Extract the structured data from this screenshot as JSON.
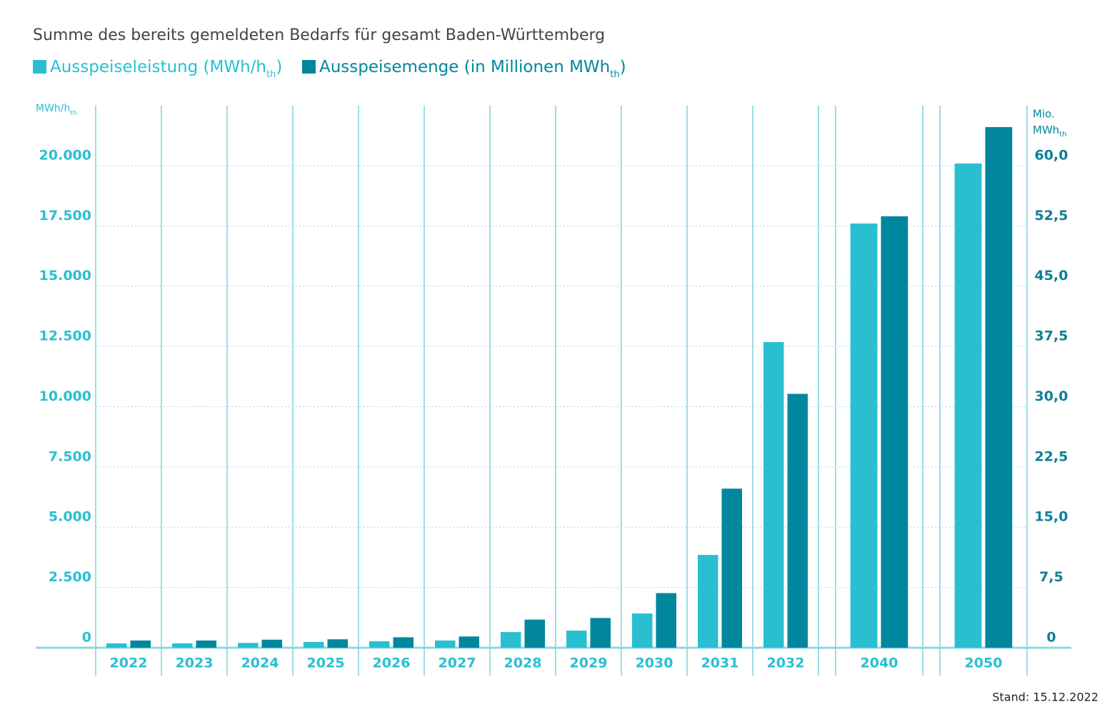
{
  "chart_data": {
    "type": "bar",
    "title": "Summe des bereits gemeldeten Bedarfs für gesamt Baden-Württemberg",
    "categories": [
      "2022",
      "2023",
      "2024",
      "2025",
      "2026",
      "2027",
      "2028",
      "2029",
      "2030",
      "2031",
      "2032",
      "2040",
      "2050"
    ],
    "series": [
      {
        "name": [
          "Ausspeiseleistung (MWh/h",
          "th",
          ")"
        ],
        "color": "#29bfd1",
        "axis": "y",
        "values": [
          180,
          180,
          200,
          240,
          270,
          300,
          650,
          710,
          1420,
          3850,
          12680,
          17600,
          20090
        ]
      },
      {
        "name": [
          "Ausspeisemenge (in Millionen MWh",
          "th",
          ")"
        ],
        "color": "#00879d",
        "axis": "y2",
        "values": [
          0.9,
          0.9,
          1.0,
          1.05,
          1.3,
          1.4,
          3.5,
          3.7,
          6.8,
          19.8,
          31.6,
          53.7,
          64.8
        ]
      }
    ],
    "y_label": [
      "MWh/h",
      "th"
    ],
    "y2_label": [
      "Mio.",
      "MWh",
      "th"
    ],
    "ylim": [
      0,
      22500
    ],
    "yticks": [
      0,
      {
        "value": 2500,
        "label": "2.500"
      },
      {
        "value": 5000,
        "label": "5.000"
      },
      {
        "value": 7500,
        "label": "7.500"
      },
      {
        "value": 10000,
        "label": "10.000"
      },
      {
        "value": 12500,
        "label": "12.500"
      },
      {
        "value": 15000,
        "label": "15.000"
      },
      {
        "value": 17500,
        "label": "17.500"
      },
      {
        "value": 20000,
        "label": "20.000"
      }
    ],
    "y2lim": [
      0,
      67.5
    ],
    "y2ticks": [
      0,
      {
        "value": 7.5,
        "label": "7,5"
      },
      {
        "value": 15,
        "label": "15,0"
      },
      {
        "value": 22.5,
        "label": "22,5"
      },
      {
        "value": 30,
        "label": "30,0"
      },
      {
        "value": 37.5,
        "label": "37,5"
      },
      {
        "value": 45,
        "label": "45,0"
      },
      {
        "value": 52.5,
        "label": "52,5"
      },
      {
        "value": 60,
        "label": "60,0"
      }
    ],
    "grid": true,
    "note": "Stand: 15.12.2022"
  }
}
